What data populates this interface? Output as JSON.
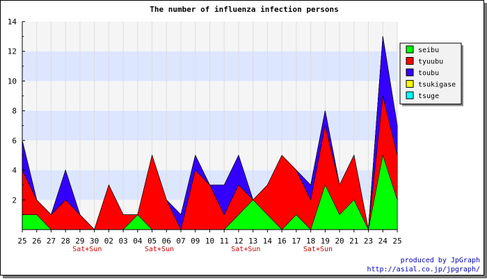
{
  "chart_data": {
    "type": "area",
    "title": "The number of influenza infection persons",
    "xlabel": "",
    "ylabel": "",
    "categories": [
      "25",
      "26",
      "27",
      "28",
      "29",
      "30",
      "02",
      "03",
      "04",
      "05",
      "06",
      "07",
      "09",
      "10",
      "11",
      "12",
      "13",
      "14",
      "16",
      "17",
      "18",
      "19",
      "20",
      "21",
      "23",
      "24",
      "25"
    ],
    "weekend_labels": [
      {
        "after": "29",
        "text": "Sat+Sun"
      },
      {
        "after": "05",
        "text": "Sat+Sun"
      },
      {
        "after": "12",
        "text": "Sat+Sun"
      },
      {
        "after": "18",
        "text": "Sat+Sun"
      }
    ],
    "ylim": [
      0,
      14
    ],
    "yticks": [
      2,
      4,
      6,
      8,
      10,
      12,
      14
    ],
    "stacked": true,
    "grid": true,
    "legend_position": "top-right",
    "series": [
      {
        "name": "seibu",
        "color": "#00ff00",
        "values": [
          1,
          1,
          0,
          0,
          0,
          0,
          0,
          0,
          1,
          0,
          0,
          0,
          0,
          0,
          0,
          1,
          2,
          1,
          0,
          1,
          0,
          3,
          1,
          2,
          0,
          5,
          2
        ]
      },
      {
        "name": "tyuubu",
        "color": "#ff0000",
        "values": [
          3,
          1,
          1,
          2,
          1,
          0,
          3,
          1,
          0,
          5,
          2,
          0,
          4,
          3,
          1,
          2,
          0,
          2,
          5,
          3,
          2,
          4,
          2,
          3,
          0,
          4,
          3
        ]
      },
      {
        "name": "toubu",
        "color": "#3300ff",
        "values": [
          2,
          0,
          0,
          2,
          0,
          0,
          0,
          0,
          0,
          0,
          0,
          1,
          1,
          0,
          2,
          2,
          0,
          0,
          0,
          0,
          1,
          1,
          0,
          0,
          0,
          4,
          2
        ]
      },
      {
        "name": "tsukigase",
        "color": "#ffff00",
        "values": [
          0,
          0,
          0,
          0,
          0,
          0,
          0,
          0,
          0,
          0,
          0,
          0,
          0,
          0,
          0,
          0,
          0,
          0,
          0,
          0,
          0,
          0,
          0,
          0,
          0,
          0,
          0
        ]
      },
      {
        "name": "tsuge",
        "color": "#00ffff",
        "values": [
          0,
          0,
          0,
          0,
          0,
          0,
          0,
          0,
          0,
          0,
          0,
          0,
          0,
          0,
          0,
          0,
          0,
          0,
          0,
          0,
          0,
          0,
          0,
          0,
          0,
          0,
          0
        ]
      }
    ],
    "colors": {
      "band_light": "#f5f5f5",
      "band_blue": "#dde6ff",
      "weekend_text": "#cc0000",
      "credit_text": "#0000aa"
    }
  },
  "credits": {
    "line1": "produced by JpGraph",
    "line2": "http://asial.co.jp/jpgraph/"
  }
}
